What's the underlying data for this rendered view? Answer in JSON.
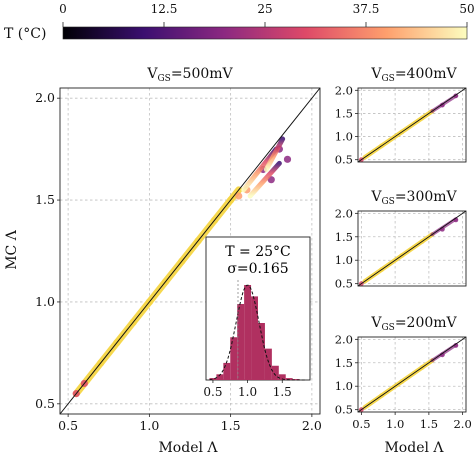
{
  "chart_data": [
    {
      "type": "scatter",
      "title_prefix": "V",
      "title_sub": "GS",
      "title_value": "=500mV",
      "xlabel": "Model Λ",
      "ylabel": "MC Λ",
      "xlim": [
        0.45,
        2.05
      ],
      "ylim": [
        0.45,
        2.05
      ],
      "xticks": [
        "0.5",
        "1.0",
        "1.5",
        "2.0"
      ],
      "yticks": [
        "0.5",
        "1.0",
        "1.5",
        "2.0"
      ],
      "grid": true,
      "reference_line": "y = x",
      "x": [
        0.55,
        0.6,
        0.7,
        0.8,
        0.9,
        1.0,
        1.1,
        1.2,
        1.3,
        1.4,
        1.5,
        1.55,
        1.6,
        1.7,
        1.75,
        1.8,
        1.85
      ],
      "y": [
        0.55,
        0.6,
        0.7,
        0.8,
        0.9,
        1.0,
        1.1,
        1.2,
        1.3,
        1.4,
        1.5,
        1.52,
        1.55,
        1.65,
        1.6,
        1.75,
        1.7
      ],
      "inset": {
        "type": "histogram",
        "label_T": "T = 25°C",
        "label_sigma": "σ=0.165",
        "xlim": [
          0.4,
          1.9
        ],
        "xticks": [
          "0.5",
          "1.0",
          "1.5"
        ],
        "bins": [
          0.5,
          0.6,
          0.7,
          0.8,
          0.9,
          1.0,
          1.1,
          1.2,
          1.3,
          1.4,
          1.5,
          1.6,
          1.7
        ],
        "density": [
          0.02,
          0.06,
          0.18,
          0.45,
          0.8,
          1.0,
          0.88,
          0.6,
          0.33,
          0.15,
          0.06,
          0.02,
          0.01
        ],
        "color": "#b03060"
      }
    },
    {
      "type": "scatter",
      "title_prefix": "V",
      "title_sub": "GS",
      "title_value": "=400mV",
      "xlim": [
        0.45,
        2.05
      ],
      "ylim": [
        0.45,
        2.05
      ],
      "xticks": [],
      "yticks": [
        "0.5",
        "1.0",
        "1.5",
        "2.0"
      ],
      "x": [
        0.5,
        0.8,
        1.1,
        1.4,
        1.7,
        1.9
      ],
      "y": [
        0.5,
        0.8,
        1.1,
        1.4,
        1.68,
        1.88
      ]
    },
    {
      "type": "scatter",
      "title_prefix": "V",
      "title_sub": "GS",
      "title_value": "=300mV",
      "xlim": [
        0.45,
        2.05
      ],
      "ylim": [
        0.45,
        2.05
      ],
      "xticks": [],
      "yticks": [
        "0.5",
        "1.0",
        "1.5",
        "2.0"
      ],
      "x": [
        0.5,
        0.8,
        1.1,
        1.4,
        1.7,
        1.9
      ],
      "y": [
        0.5,
        0.8,
        1.1,
        1.4,
        1.66,
        1.86
      ]
    },
    {
      "type": "scatter",
      "title_prefix": "V",
      "title_sub": "GS",
      "title_value": "=200mV",
      "xlabel": "Model Λ",
      "xlim": [
        0.45,
        2.05
      ],
      "ylim": [
        0.45,
        2.05
      ],
      "xticks": [
        "0.5",
        "1.0",
        "1.5",
        "2.0"
      ],
      "yticks": [
        "0.5",
        "1.0",
        "1.5",
        "2.0"
      ],
      "x": [
        0.5,
        0.8,
        1.1,
        1.4,
        1.7,
        1.9
      ],
      "y": [
        0.5,
        0.8,
        1.1,
        1.4,
        1.67,
        1.87
      ]
    }
  ],
  "colorbar": {
    "label": "T (°C)",
    "ticks": [
      "0",
      "12.5",
      "25",
      "37.5",
      "50"
    ],
    "range": [
      0,
      50
    ],
    "colors": [
      "#000004",
      "#3b0f70",
      "#8c2981",
      "#de4968",
      "#fe9f6d",
      "#fcfdbf"
    ],
    "point_color": "#f6d645"
  }
}
